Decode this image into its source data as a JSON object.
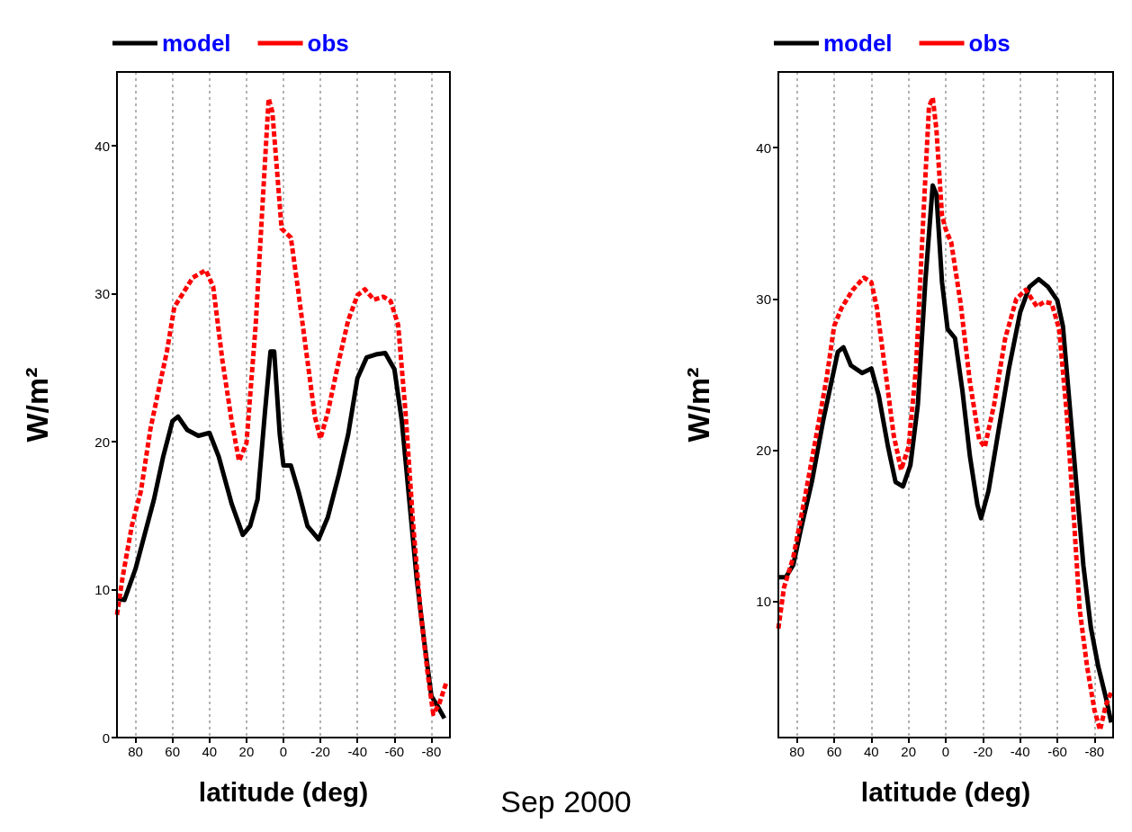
{
  "chart_data": [
    {
      "type": "line",
      "xlabel": "latitude (deg)",
      "ylabel": "W/m²",
      "xlim": [
        90,
        -90
      ],
      "xticks": [
        80,
        60,
        40,
        20,
        0,
        -20,
        -40,
        -60,
        -80
      ],
      "ylim": [
        0,
        45
      ],
      "yticks": [
        0,
        10,
        20,
        30,
        40
      ],
      "grid": "x",
      "legend": "top left",
      "marker": "none",
      "annotations": [
        "Sep 2000"
      ],
      "series": [
        {
          "name": "model",
          "color": "#000000",
          "line_style": "solid",
          "x": [
            90,
            86,
            80,
            70,
            65,
            60,
            57,
            52,
            46,
            40,
            35,
            28,
            22,
            18,
            14,
            10,
            7,
            5,
            2,
            0,
            -4,
            -8,
            -13,
            -19,
            -24,
            -30,
            -35,
            -40,
            -45,
            -50,
            -55,
            -60,
            -64,
            -68,
            -72,
            -76,
            -80,
            -83,
            -87
          ],
          "values": [
            9.4,
            9.3,
            11.4,
            16.1,
            19,
            21.4,
            21.7,
            20.8,
            20.4,
            20.6,
            19,
            15.8,
            13.7,
            14.3,
            16.1,
            22,
            26.1,
            26.1,
            20.5,
            18.4,
            18.4,
            16.7,
            14.3,
            13.4,
            14.9,
            17.8,
            20.5,
            24.3,
            25.7,
            25.9,
            26,
            24.9,
            21.4,
            16.1,
            10.8,
            6.6,
            2.8,
            2.2,
            1.3
          ]
        },
        {
          "name": "obs",
          "color": "#ff0000",
          "line_style": "dashed",
          "x": [
            90,
            87,
            82,
            77,
            72,
            68,
            63,
            59,
            55,
            49,
            42,
            38,
            33,
            28,
            24,
            20,
            15,
            11,
            8,
            6,
            3,
            1,
            -4,
            -8,
            -12,
            -17,
            -20,
            -24,
            -30,
            -35,
            -40,
            -44,
            -49,
            -54,
            -58,
            -62,
            -66,
            -70,
            -74,
            -78,
            -81,
            -84,
            -88
          ],
          "values": [
            8.3,
            10.8,
            14.3,
            16.7,
            20.8,
            23.2,
            26.1,
            29.1,
            29.9,
            31.1,
            31.6,
            30.5,
            25.5,
            21.4,
            18.7,
            19.9,
            27.9,
            36.7,
            43.2,
            42.3,
            37.6,
            34.4,
            33.8,
            30.2,
            26.4,
            21.7,
            20.2,
            22,
            25.5,
            28.2,
            29.9,
            30.3,
            29.6,
            29.8,
            29.5,
            27.9,
            22,
            14.6,
            8.7,
            4.3,
            1.6,
            2.2,
            3.7
          ]
        }
      ]
    },
    {
      "type": "line",
      "xlabel": "latitude (deg)",
      "ylabel": "W/m²",
      "xlim": [
        90,
        -90
      ],
      "xticks": [
        80,
        60,
        40,
        20,
        0,
        -20,
        -40,
        -60,
        -80
      ],
      "ylim": [
        1,
        45
      ],
      "yticks": [
        10,
        20,
        30,
        40
      ],
      "grid": "x",
      "legend": "top left",
      "marker": "none",
      "series": [
        {
          "name": "model",
          "color": "#000000",
          "line_style": "solid",
          "x": [
            90,
            86,
            82,
            78,
            72,
            66,
            62,
            58,
            55,
            51,
            45,
            40,
            36,
            31,
            27,
            23,
            19,
            15,
            11,
            7,
            5,
            2,
            -1,
            -5,
            -9,
            -13,
            -17,
            -19,
            -23,
            -28,
            -34,
            -40,
            -45,
            -50,
            -55,
            -60,
            -63,
            -66,
            -70,
            -74,
            -78,
            -82,
            -86,
            -89
          ],
          "values": [
            11.6,
            11.6,
            12.4,
            14.7,
            17.9,
            21.9,
            24.2,
            26.5,
            26.8,
            25.6,
            25.1,
            25.4,
            23.6,
            20.2,
            17.9,
            17.6,
            19,
            23,
            31.1,
            37.5,
            36.9,
            31.1,
            28,
            27.4,
            23.9,
            19.6,
            16.4,
            15.5,
            17.3,
            21,
            25.4,
            29.1,
            30.8,
            31.3,
            30.8,
            29.9,
            28.2,
            23.9,
            18.1,
            12.4,
            8.3,
            5.7,
            3.7,
            2
          ]
        },
        {
          "name": "obs",
          "color": "#ff0000",
          "line_style": "dashed",
          "x": [
            90,
            87,
            82,
            76,
            70,
            64,
            60,
            56,
            50,
            44,
            40,
            37,
            32,
            28,
            24,
            20,
            16,
            12,
            9,
            7,
            5,
            2,
            0,
            -3,
            -8,
            -13,
            -18,
            -21,
            -26,
            -32,
            -38,
            -43,
            -49,
            -53,
            -57,
            -61,
            -65,
            -69,
            -72,
            -76,
            -80,
            -83,
            -86,
            -89
          ],
          "values": [
            8.2,
            10.9,
            12.9,
            16.7,
            20.7,
            24.8,
            28.2,
            29.4,
            30.6,
            31.4,
            31.1,
            29.4,
            24.8,
            21,
            18.7,
            20.2,
            25.4,
            35.5,
            42.7,
            43.3,
            41.2,
            35.5,
            34.6,
            33.7,
            29.7,
            24.5,
            20.7,
            20.2,
            23,
            27.4,
            30,
            30.6,
            29.5,
            29.8,
            29.7,
            28,
            22.5,
            15.3,
            9.5,
            5.7,
            2.8,
            1.5,
            3.1,
            4
          ]
        }
      ]
    }
  ]
}
